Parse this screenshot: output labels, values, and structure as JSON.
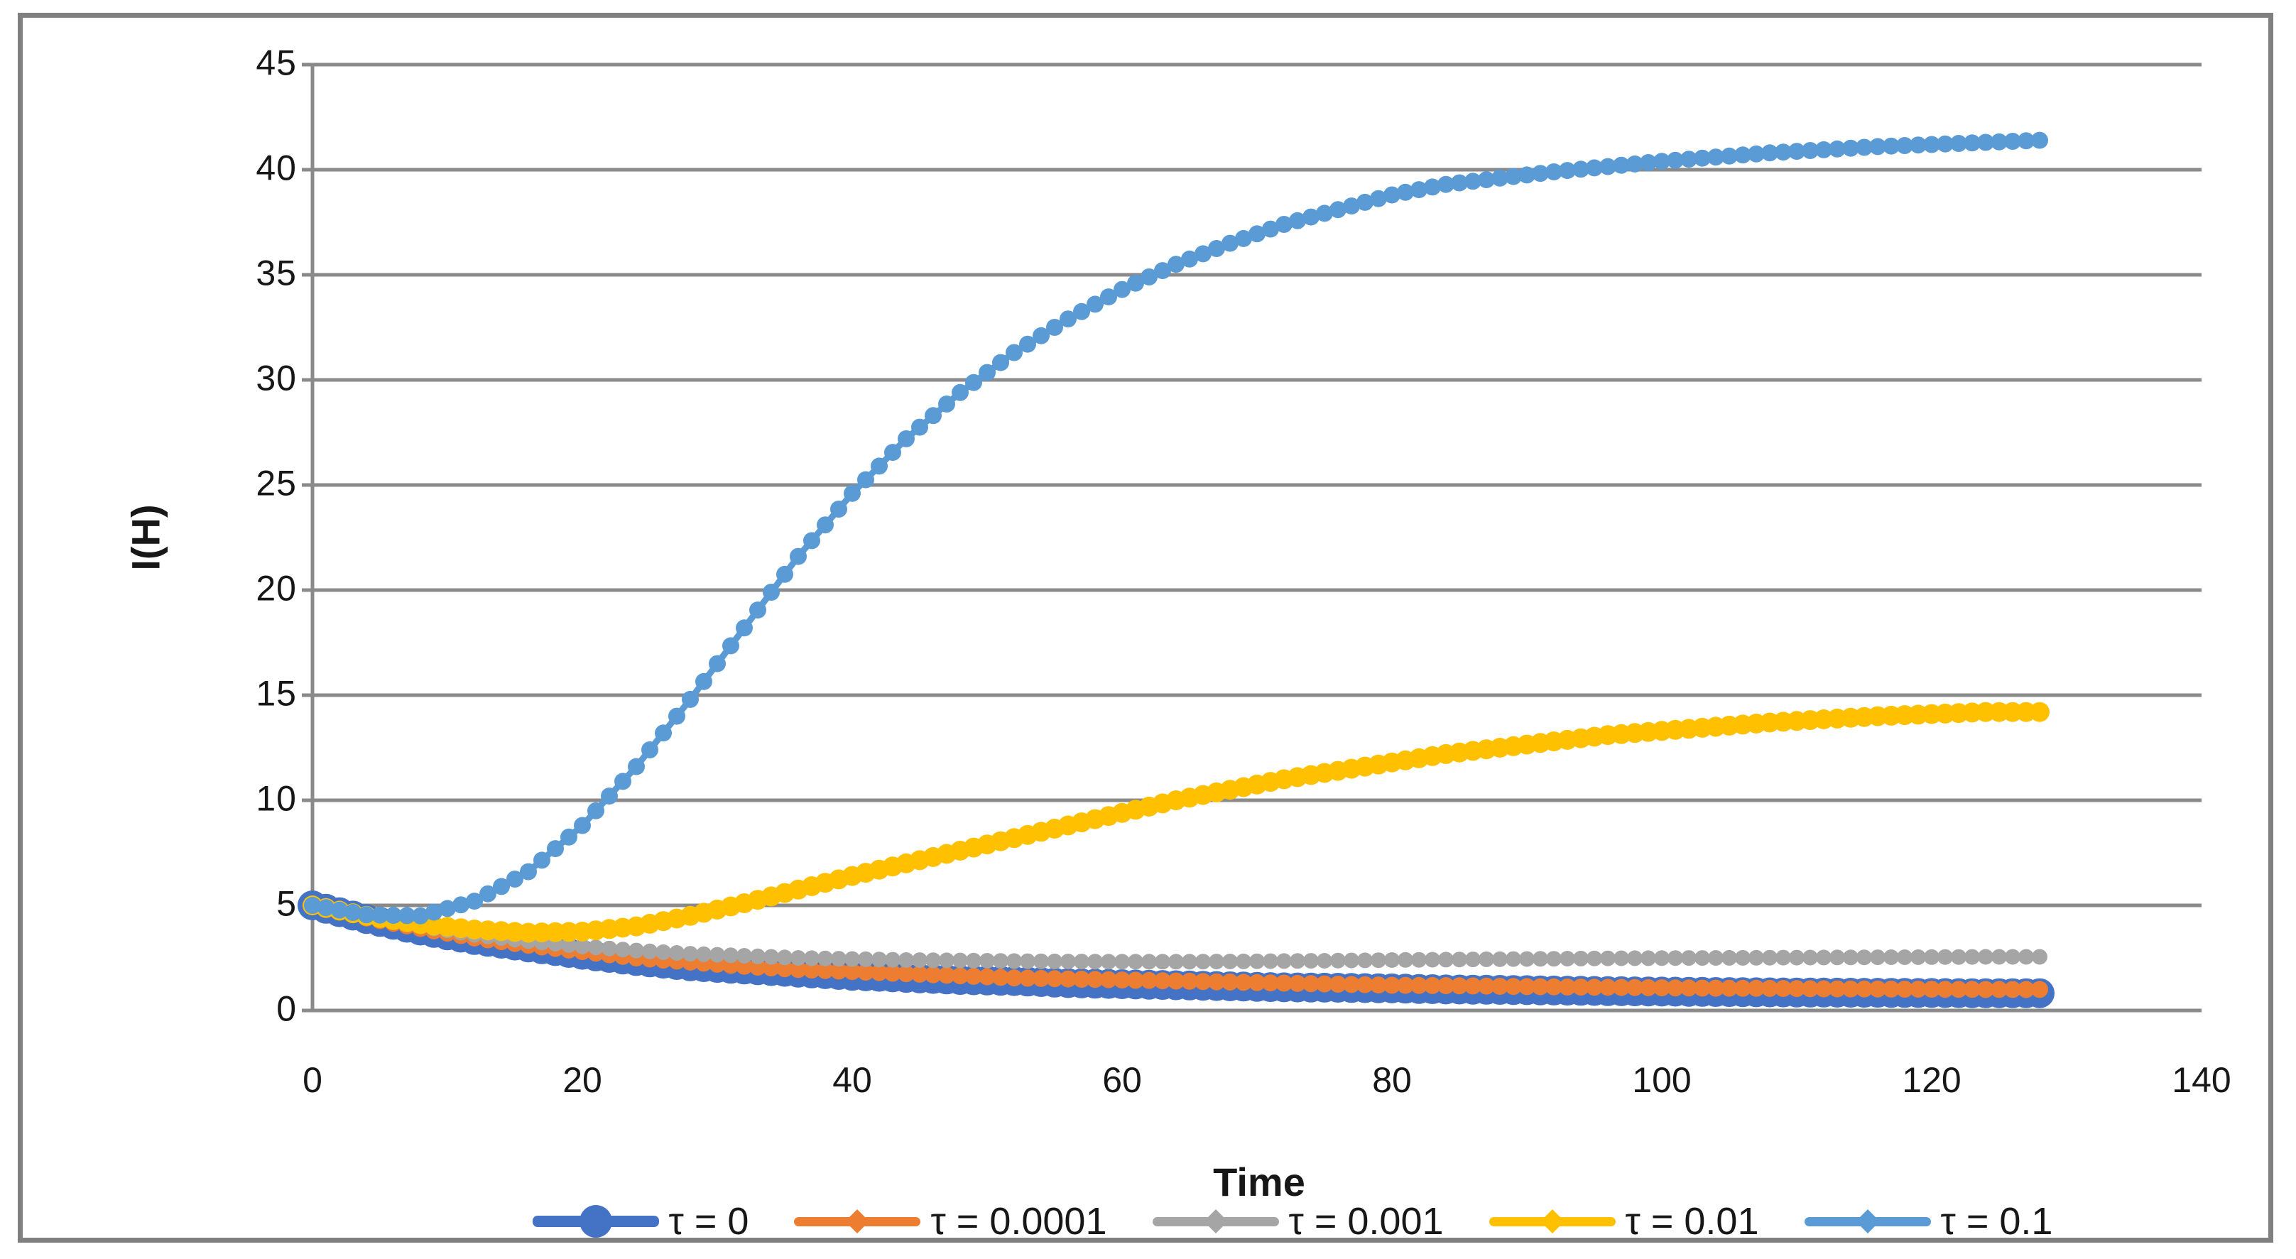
{
  "figure": {
    "background": "#ffffff",
    "border_color": "#808080"
  },
  "chart_data": {
    "type": "line",
    "title": "",
    "xlabel": "Time",
    "ylabel": "I(H)",
    "xlim": [
      0,
      140
    ],
    "ylim": [
      0,
      45
    ],
    "xticks": [
      0,
      20,
      40,
      60,
      80,
      100,
      120,
      140
    ],
    "yticks": [
      0,
      5,
      10,
      15,
      20,
      25,
      30,
      35,
      40,
      45
    ],
    "grid": "horizontal-only",
    "grid_color": "#8a8a8a",
    "axis_color": "#8a8a8a",
    "legend_position": "bottom",
    "x": [
      0,
      4,
      8,
      12,
      16,
      20,
      24,
      28,
      32,
      36,
      40,
      44,
      48,
      52,
      56,
      60,
      64,
      68,
      72,
      76,
      80,
      84,
      88,
      92,
      96,
      100,
      104,
      108,
      112,
      116,
      120,
      124,
      128
    ],
    "series": [
      {
        "name": "tau-0",
        "label": "τ = 0",
        "color": "#4472C4",
        "marker": "circle",
        "values": [
          5,
          4.35,
          3.8,
          3.35,
          3,
          2.65,
          2.35,
          2.1,
          1.95,
          1.8,
          1.65,
          1.55,
          1.45,
          1.4,
          1.3,
          1.25,
          1.2,
          1.15,
          1.1,
          1.08,
          1.05,
          1,
          0.98,
          0.95,
          0.92,
          0.9,
          0.88,
          0.86,
          0.85,
          0.84,
          0.83,
          0.82,
          0.82
        ]
      },
      {
        "name": "tau-0.0001",
        "label": "τ = 0.0001",
        "color": "#ED7D31",
        "marker": "diamond",
        "values": [
          5,
          4.4,
          3.9,
          3.45,
          3.1,
          2.8,
          2.5,
          2.3,
          2.1,
          1.95,
          1.85,
          1.75,
          1.65,
          1.55,
          1.5,
          1.45,
          1.4,
          1.35,
          1.3,
          1.25,
          1.2,
          1.18,
          1.15,
          1.12,
          1.1,
          1.08,
          1.06,
          1.05,
          1.03,
          1.02,
          1.01,
          1,
          1
        ]
      },
      {
        "name": "tau-0.001",
        "label": "τ = 0.001",
        "color": "#A5A5A5",
        "marker": "diamond",
        "values": [
          5,
          4.45,
          4,
          3.6,
          3.3,
          3.05,
          2.85,
          2.7,
          2.6,
          2.5,
          2.45,
          2.4,
          2.38,
          2.35,
          2.33,
          2.32,
          2.32,
          2.33,
          2.35,
          2.37,
          2.4,
          2.42,
          2.44,
          2.46,
          2.48,
          2.49,
          2.5,
          2.51,
          2.52,
          2.53,
          2.54,
          2.55,
          2.55
        ]
      },
      {
        "name": "tau-0.01",
        "label": "τ = 0.01",
        "color": "#FFC000",
        "marker": "diamond",
        "values": [
          5,
          4.5,
          4.1,
          3.85,
          3.7,
          3.75,
          4,
          4.5,
          5.1,
          5.75,
          6.4,
          7,
          7.6,
          8.2,
          8.8,
          9.4,
          10,
          10.5,
          11,
          11.4,
          11.8,
          12.2,
          12.5,
          12.8,
          13.1,
          13.3,
          13.5,
          13.7,
          13.85,
          14,
          14.1,
          14.2,
          14.2
        ]
      },
      {
        "name": "tau-0.1",
        "label": "τ = 0.1",
        "color": "#5B9BD5",
        "marker": "diamond",
        "values": [
          5,
          4.55,
          4.5,
          5.2,
          6.6,
          8.8,
          11.6,
          14.8,
          18.2,
          21.6,
          24.6,
          27.2,
          29.4,
          31.3,
          32.9,
          34.3,
          35.5,
          36.5,
          37.4,
          38.1,
          38.8,
          39.3,
          39.6,
          39.9,
          40.15,
          40.4,
          40.6,
          40.8,
          40.95,
          41.1,
          41.2,
          41.3,
          41.4
        ]
      }
    ]
  }
}
